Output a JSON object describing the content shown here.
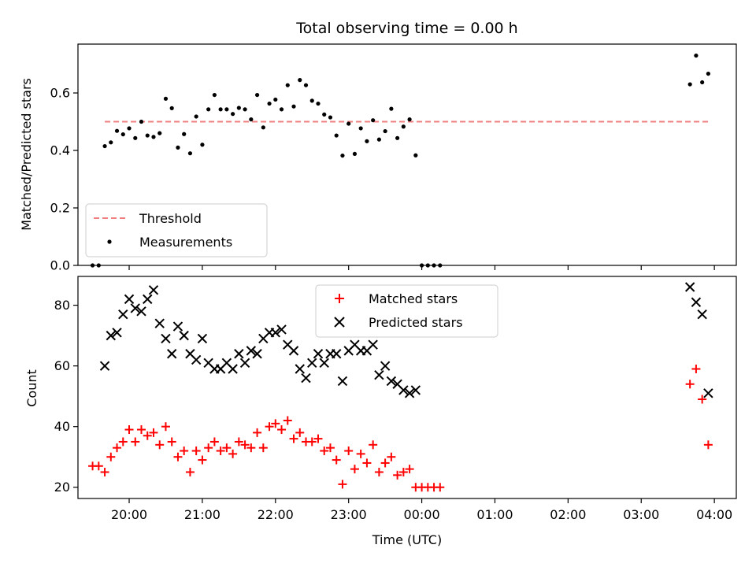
{
  "chart_data": [
    {
      "type": "scatter",
      "title": "Total observing time = 0.00 h",
      "xlabel": "",
      "ylabel": "Matched/Predicted stars",
      "xlim": [
        "19:18",
        "04:18"
      ],
      "ylim": [
        0,
        0.77
      ],
      "yticks": [
        0.0,
        0.2,
        0.4,
        0.6
      ],
      "ytick_labels": [
        "0.0",
        "0.2",
        "0.4",
        "0.6"
      ],
      "grid": false,
      "legend_position": "lower-left",
      "threshold": {
        "name": "Threshold",
        "value": 0.5,
        "x": [
          "19:40",
          "03:56"
        ],
        "color": "#f08080"
      },
      "series": [
        {
          "name": "Measurements",
          "color": "#000000",
          "marker": "dot",
          "points": [
            [
              "19:30",
              0.0
            ],
            [
              "19:35",
              0.0
            ],
            [
              "19:40",
              0.415
            ],
            [
              "19:45",
              0.428
            ],
            [
              "19:50",
              0.468
            ],
            [
              "19:55",
              0.456
            ],
            [
              "20:00",
              0.477
            ],
            [
              "20:05",
              0.443
            ],
            [
              "20:10",
              0.5
            ],
            [
              "20:15",
              0.452
            ],
            [
              "20:20",
              0.447
            ],
            [
              "20:25",
              0.46
            ],
            [
              "20:30",
              0.58
            ],
            [
              "20:35",
              0.547
            ],
            [
              "20:40",
              0.41
            ],
            [
              "20:45",
              0.457
            ],
            [
              "20:50",
              0.39
            ],
            [
              "20:55",
              0.518
            ],
            [
              "21:00",
              0.42
            ],
            [
              "21:05",
              0.543
            ],
            [
              "21:10",
              0.593
            ],
            [
              "21:15",
              0.543
            ],
            [
              "21:20",
              0.543
            ],
            [
              "21:25",
              0.527
            ],
            [
              "21:30",
              0.548
            ],
            [
              "21:35",
              0.543
            ],
            [
              "21:40",
              0.508
            ],
            [
              "21:45",
              0.593
            ],
            [
              "21:50",
              0.48
            ],
            [
              "21:55",
              0.563
            ],
            [
              "22:00",
              0.577
            ],
            [
              "22:05",
              0.543
            ],
            [
              "22:10",
              0.627
            ],
            [
              "22:15",
              0.553
            ],
            [
              "22:20",
              0.645
            ],
            [
              "22:25",
              0.627
            ],
            [
              "22:30",
              0.573
            ],
            [
              "22:35",
              0.563
            ],
            [
              "22:40",
              0.525
            ],
            [
              "22:45",
              0.515
            ],
            [
              "22:50",
              0.452
            ],
            [
              "22:55",
              0.382
            ],
            [
              "23:00",
              0.493
            ],
            [
              "23:05",
              0.388
            ],
            [
              "23:10",
              0.477
            ],
            [
              "23:15",
              0.432
            ],
            [
              "23:20",
              0.505
            ],
            [
              "23:25",
              0.438
            ],
            [
              "23:30",
              0.467
            ],
            [
              "23:35",
              0.545
            ],
            [
              "23:40",
              0.443
            ],
            [
              "23:45",
              0.483
            ],
            [
              "23:50",
              0.508
            ],
            [
              "23:55",
              0.383
            ],
            [
              "00:00",
              0.0
            ],
            [
              "00:05",
              0.0
            ],
            [
              "00:10",
              0.0
            ],
            [
              "00:15",
              0.0
            ],
            [
              "03:40",
              0.63
            ],
            [
              "03:45",
              0.73
            ],
            [
              "03:50",
              0.637
            ],
            [
              "03:55",
              0.667
            ]
          ]
        }
      ]
    },
    {
      "type": "scatter",
      "title": "",
      "xlabel": "Time (UTC)",
      "ylabel": "Count",
      "xlim": [
        "19:18",
        "04:18"
      ],
      "ylim": [
        16.3,
        89.5
      ],
      "yticks": [
        20,
        40,
        60,
        80
      ],
      "ytick_labels": [
        "20",
        "40",
        "60",
        "80"
      ],
      "xticks": [
        "20:00",
        "21:00",
        "22:00",
        "23:00",
        "00:00",
        "01:00",
        "02:00",
        "03:00",
        "04:00"
      ],
      "grid": false,
      "legend_position": "upper-center",
      "series": [
        {
          "name": "Matched stars",
          "color": "#ff0000",
          "marker": "plus",
          "points": [
            [
              "19:30",
              27
            ],
            [
              "19:35",
              27
            ],
            [
              "19:40",
              25
            ],
            [
              "19:45",
              30
            ],
            [
              "19:50",
              33
            ],
            [
              "19:55",
              35
            ],
            [
              "20:00",
              39
            ],
            [
              "20:05",
              35
            ],
            [
              "20:10",
              39
            ],
            [
              "20:15",
              37
            ],
            [
              "20:20",
              38
            ],
            [
              "20:25",
              34
            ],
            [
              "20:30",
              40
            ],
            [
              "20:35",
              35
            ],
            [
              "20:40",
              30
            ],
            [
              "20:45",
              32
            ],
            [
              "20:50",
              25
            ],
            [
              "20:55",
              32
            ],
            [
              "21:00",
              29
            ],
            [
              "21:05",
              33
            ],
            [
              "21:10",
              35
            ],
            [
              "21:15",
              32
            ],
            [
              "21:20",
              33
            ],
            [
              "21:25",
              31
            ],
            [
              "21:30",
              35
            ],
            [
              "21:35",
              34
            ],
            [
              "21:40",
              33
            ],
            [
              "21:45",
              38
            ],
            [
              "21:50",
              33
            ],
            [
              "21:55",
              40
            ],
            [
              "22:00",
              41
            ],
            [
              "22:05",
              39
            ],
            [
              "22:10",
              42
            ],
            [
              "22:15",
              36
            ],
            [
              "22:20",
              38
            ],
            [
              "22:25",
              35
            ],
            [
              "22:30",
              35
            ],
            [
              "22:35",
              36
            ],
            [
              "22:40",
              32
            ],
            [
              "22:45",
              33
            ],
            [
              "22:50",
              29
            ],
            [
              "22:55",
              21
            ],
            [
              "23:00",
              32
            ],
            [
              "23:05",
              26
            ],
            [
              "23:10",
              31
            ],
            [
              "23:15",
              28
            ],
            [
              "23:20",
              34
            ],
            [
              "23:25",
              25
            ],
            [
              "23:30",
              28
            ],
            [
              "23:35",
              30
            ],
            [
              "23:40",
              24
            ],
            [
              "23:45",
              25
            ],
            [
              "23:50",
              26
            ],
            [
              "23:55",
              20
            ],
            [
              "00:00",
              20
            ],
            [
              "00:05",
              20
            ],
            [
              "00:10",
              20
            ],
            [
              "00:15",
              20
            ],
            [
              "03:40",
              54
            ],
            [
              "03:45",
              59
            ],
            [
              "03:50",
              49
            ],
            [
              "03:55",
              34
            ]
          ]
        },
        {
          "name": "Predicted stars",
          "color": "#000000",
          "marker": "x",
          "points": [
            [
              "19:40",
              60
            ],
            [
              "19:45",
              70
            ],
            [
              "19:50",
              71
            ],
            [
              "19:55",
              77
            ],
            [
              "20:00",
              82
            ],
            [
              "20:05",
              79
            ],
            [
              "20:10",
              78
            ],
            [
              "20:15",
              82
            ],
            [
              "20:20",
              85
            ],
            [
              "20:25",
              74
            ],
            [
              "20:30",
              69
            ],
            [
              "20:35",
              64
            ],
            [
              "20:40",
              73
            ],
            [
              "20:45",
              70
            ],
            [
              "20:50",
              64
            ],
            [
              "20:55",
              62
            ],
            [
              "21:00",
              69
            ],
            [
              "21:05",
              61
            ],
            [
              "21:10",
              59
            ],
            [
              "21:15",
              59
            ],
            [
              "21:20",
              61
            ],
            [
              "21:25",
              59
            ],
            [
              "21:30",
              64
            ],
            [
              "21:35",
              61
            ],
            [
              "21:40",
              65
            ],
            [
              "21:45",
              64
            ],
            [
              "21:50",
              69
            ],
            [
              "21:55",
              71
            ],
            [
              "22:00",
              71
            ],
            [
              "22:05",
              72
            ],
            [
              "22:10",
              67
            ],
            [
              "22:15",
              65
            ],
            [
              "22:20",
              59
            ],
            [
              "22:25",
              56
            ],
            [
              "22:30",
              61
            ],
            [
              "22:35",
              64
            ],
            [
              "22:40",
              61
            ],
            [
              "22:45",
              64
            ],
            [
              "22:50",
              64
            ],
            [
              "22:55",
              55
            ],
            [
              "23:00",
              65
            ],
            [
              "23:05",
              67
            ],
            [
              "23:10",
              65
            ],
            [
              "23:15",
              65
            ],
            [
              "23:20",
              67
            ],
            [
              "23:25",
              57
            ],
            [
              "23:30",
              60
            ],
            [
              "23:35",
              55
            ],
            [
              "23:40",
              54
            ],
            [
              "23:45",
              52
            ],
            [
              "23:50",
              51
            ],
            [
              "23:55",
              52
            ],
            [
              "03:40",
              86
            ],
            [
              "03:45",
              81
            ],
            [
              "03:50",
              77
            ],
            [
              "03:55",
              51
            ]
          ]
        }
      ]
    }
  ]
}
